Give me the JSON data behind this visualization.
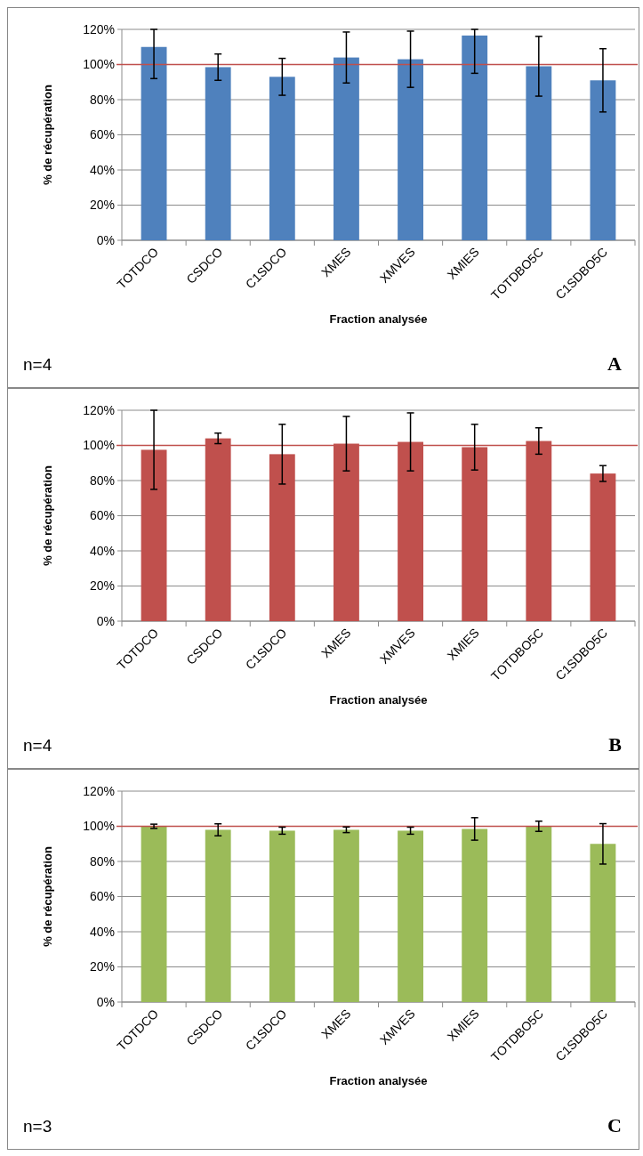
{
  "chart_data": [
    {
      "type": "bar",
      "xlabel": "Fraction analysée",
      "ylabel": "% de récupération",
      "annotations": [
        "n=4",
        "A"
      ],
      "categories": [
        "TOTDCO",
        "CSDCO",
        "C1SDCO",
        "XMES",
        "XMVES",
        "XMIES",
        "TOTDBO5C",
        "C1SDBO5C"
      ],
      "series": [
        {
          "color": "#4f81bd",
          "values": [
            110,
            98.5,
            93,
            104,
            103,
            116.5,
            99,
            91
          ],
          "errors": [
            [
              92,
              120
            ],
            7.5,
            10.5,
            14.5,
            16,
            [
              95,
              120
            ],
            17,
            18
          ]
        }
      ],
      "ylim": [
        0,
        120
      ],
      "yticks": [
        {
          "value": 0,
          "label": "0%"
        },
        {
          "value": 20,
          "label": "20%"
        },
        {
          "value": 40,
          "label": "40%"
        },
        {
          "value": 60,
          "label": "60%"
        },
        {
          "value": 80,
          "label": "80%"
        },
        {
          "value": 100,
          "label": "100%"
        },
        {
          "value": 120,
          "label": "120%"
        }
      ],
      "grid": "y",
      "ref_lines": [
        {
          "axis": "y",
          "value": 100,
          "color": "#c0504d"
        }
      ]
    },
    {
      "type": "bar",
      "xlabel": "Fraction analysée",
      "ylabel": "% de récupération",
      "annotations": [
        "n=4",
        "B"
      ],
      "categories": [
        "TOTDCO",
        "CSDCO",
        "C1SDCO",
        "XMES",
        "XMVES",
        "XMIES",
        "TOTDBO5C",
        "C1SDBO5C"
      ],
      "series": [
        {
          "color": "#c0504d",
          "values": [
            97.5,
            104,
            95,
            101,
            102,
            99,
            102.5,
            84
          ],
          "errors": [
            22.5,
            3,
            17,
            15.5,
            16.5,
            13,
            7.5,
            4.5
          ]
        }
      ],
      "ylim": [
        0,
        120
      ],
      "yticks": [
        {
          "value": 0,
          "label": "0%"
        },
        {
          "value": 20,
          "label": "20%"
        },
        {
          "value": 40,
          "label": "40%"
        },
        {
          "value": 60,
          "label": "60%"
        },
        {
          "value": 80,
          "label": "80%"
        },
        {
          "value": 100,
          "label": "100%"
        },
        {
          "value": 120,
          "label": "120%"
        }
      ],
      "grid": "y",
      "ref_lines": [
        {
          "axis": "y",
          "value": 100,
          "color": "#c0504d"
        }
      ]
    },
    {
      "type": "bar",
      "xlabel": "Fraction analysée",
      "ylabel": "% de récupération",
      "annotations": [
        "n=3",
        "C"
      ],
      "categories": [
        "TOTDCO",
        "CSDCO",
        "C1SDCO",
        "XMES",
        "XMVES",
        "XMIES",
        "TOTDBO5C",
        "C1SDBO5C"
      ],
      "series": [
        {
          "color": "#9bbb59",
          "values": [
            100,
            98,
            97.5,
            98,
            97.5,
            98.5,
            100,
            90
          ],
          "errors": [
            1.2,
            3.4,
            2,
            1.6,
            2,
            6.4,
            2.9,
            11.5
          ]
        }
      ],
      "ylim": [
        0,
        120
      ],
      "yticks": [
        {
          "value": 0,
          "label": "0%"
        },
        {
          "value": 20,
          "label": "20%"
        },
        {
          "value": 40,
          "label": "40%"
        },
        {
          "value": 60,
          "label": "60%"
        },
        {
          "value": 80,
          "label": "80%"
        },
        {
          "value": 100,
          "label": "100%"
        },
        {
          "value": 120,
          "label": "120%"
        }
      ],
      "grid": "y",
      "ref_lines": [
        {
          "axis": "y",
          "value": 100,
          "color": "#c0504d"
        }
      ]
    }
  ]
}
